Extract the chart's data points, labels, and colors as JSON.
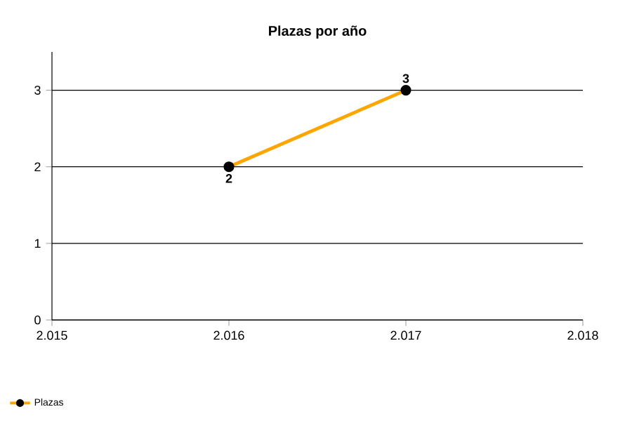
{
  "chart_data": {
    "type": "line",
    "title": "Plazas por año",
    "x": [
      2016,
      2017
    ],
    "series": [
      {
        "name": "Plazas",
        "color": "#ffa500",
        "values": [
          2,
          3
        ]
      }
    ],
    "xlim": [
      2015,
      2018
    ],
    "xticks": [
      {
        "value": 2015,
        "label": "2.015"
      },
      {
        "value": 2016,
        "label": "2.016"
      },
      {
        "value": 2017,
        "label": "2.017"
      },
      {
        "value": 2018,
        "label": "2.018"
      }
    ],
    "ylim": [
      0,
      3.5
    ],
    "yticks": [
      0,
      1,
      2,
      3
    ],
    "grid": "y",
    "legend": "bottom left",
    "marker": "circle",
    "data_labels": true
  }
}
